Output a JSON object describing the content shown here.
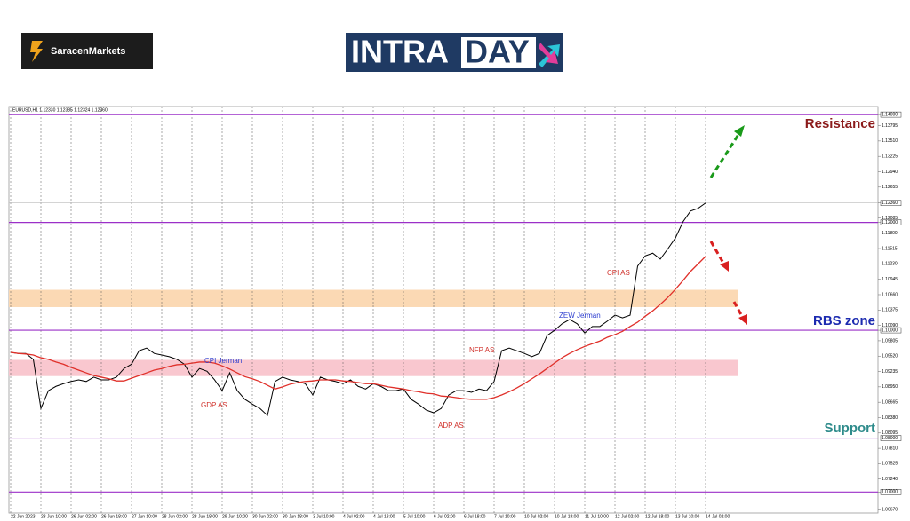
{
  "header": {
    "broker": "SaracenMarkets",
    "banner_left": "INTRA",
    "banner_right": "DAY"
  },
  "chart_data": {
    "type": "line",
    "symbol_info": "EURUSD,H1  1.12330 1.12385 1.12324 1.12360",
    "categories": [
      "22 Jun 2023",
      null,
      null,
      null,
      "23 Jun 10:00",
      null,
      null,
      null,
      "26 Jun 02:00",
      null,
      null,
      null,
      "26 Jun 18:00",
      null,
      null,
      null,
      "27 Jun 10:00",
      null,
      null,
      null,
      "28 Jun 02:00",
      null,
      null,
      null,
      "28 Jun 18:00",
      null,
      null,
      null,
      "29 Jun 10:00",
      null,
      null,
      null,
      "30 Jun 02:00",
      null,
      null,
      null,
      "30 Jun 18:00",
      null,
      null,
      null,
      "3 Jul 10:00",
      null,
      null,
      null,
      "4 Jul 02:00",
      null,
      null,
      null,
      "4 Jul 18:00",
      null,
      null,
      null,
      "5 Jul 10:00",
      null,
      null,
      null,
      "6 Jul 02:00",
      null,
      null,
      null,
      "6 Jul 18:00",
      null,
      null,
      null,
      "7 Jul 10:00",
      null,
      null,
      null,
      "10 Jul 02:00",
      null,
      null,
      null,
      "10 Jul 18:00",
      null,
      null,
      null,
      "11 Jul 10:00",
      null,
      null,
      null,
      "12 Jul 02:00",
      null,
      null,
      null,
      "12 Jul 18:00",
      null,
      null,
      null,
      "13 Jul 10:00",
      null,
      null,
      null,
      "14 Jul 02:00"
    ],
    "series": [
      {
        "color": "#000000",
        "values": [
          1.0959,
          1.0957,
          1.0957,
          1.0946,
          1.0855,
          1.0888,
          1.0896,
          1.0901,
          1.0905,
          1.0908,
          1.0905,
          1.0913,
          1.0908,
          1.0908,
          1.0913,
          1.0929,
          1.0937,
          1.0962,
          1.0967,
          1.0957,
          1.0954,
          1.0951,
          1.0946,
          1.0937,
          1.0913,
          1.0929,
          1.0924,
          1.0908,
          1.0888,
          1.0921,
          1.0888,
          1.0872,
          1.0863,
          1.0855,
          1.0842,
          1.0905,
          1.0913,
          1.0908,
          1.0905,
          1.0901,
          1.088,
          1.0913,
          1.0908,
          1.0905,
          1.0901,
          1.0908,
          1.0896,
          1.0891,
          1.0901,
          1.0896,
          1.0888,
          1.0888,
          1.0891,
          1.0872,
          1.0863,
          1.0852,
          1.0847,
          1.0855,
          1.088,
          1.0888,
          1.0888,
          1.0885,
          1.0891,
          1.0888,
          1.0905,
          1.0962,
          1.0967,
          1.0962,
          1.0957,
          1.0951,
          1.0957,
          1.099,
          1.1,
          1.1012,
          1.102,
          1.1012,
          1.0995,
          1.1007,
          1.1007,
          1.1017,
          1.1028,
          1.1023,
          1.1028,
          1.1119,
          1.1138,
          1.1143,
          1.1132,
          1.1151,
          1.1171,
          1.1201,
          1.1221,
          1.1226,
          1.1236
        ]
      },
      {
        "color": "#e0302a",
        "values": [
          1.0959,
          1.0957,
          1.0956,
          1.0954,
          1.0949,
          1.0946,
          1.0941,
          1.0937,
          1.0931,
          1.0926,
          1.0921,
          1.0916,
          1.0913,
          1.091,
          1.0906,
          1.0906,
          1.0911,
          1.0916,
          1.0921,
          1.0926,
          1.0929,
          1.0933,
          1.0936,
          1.0937,
          1.0939,
          1.0941,
          1.0941,
          1.0939,
          1.0934,
          1.0928,
          1.0921,
          1.0914,
          1.091,
          1.0905,
          1.0898,
          1.0891,
          1.0895,
          1.09,
          1.0903,
          1.0905,
          1.0906,
          1.0908,
          1.0908,
          1.0908,
          1.0906,
          1.0905,
          1.0903,
          1.0901,
          1.0901,
          1.0898,
          1.0895,
          1.0893,
          1.0891,
          1.0888,
          1.0886,
          1.0883,
          1.0882,
          1.0878,
          1.0877,
          1.0875,
          1.0873,
          1.0872,
          1.0872,
          1.0872,
          1.0875,
          1.088,
          1.0886,
          1.0893,
          1.0901,
          1.091,
          1.0919,
          1.0929,
          1.0939,
          1.0949,
          1.0957,
          1.0964,
          1.097,
          1.0975,
          1.098,
          1.0987,
          1.0992,
          1.0998,
          1.1007,
          1.1015,
          1.1026,
          1.1036,
          1.1048,
          1.1061,
          1.1076,
          1.1092,
          1.1109,
          1.1123,
          1.1137
        ]
      }
    ],
    "ylim": [
      1.0661,
      1.1415
    ],
    "yticks": [
      {
        "value": 1.14,
        "label": "1.14000",
        "boxed": true
      },
      {
        "value": 1.13795,
        "label": "1.13795"
      },
      {
        "value": 1.1351,
        "label": "1.13510"
      },
      {
        "value": 1.13225,
        "label": "1.13225"
      },
      {
        "value": 1.1294,
        "label": "1.12940"
      },
      {
        "value": 1.12655,
        "label": "1.12655"
      },
      {
        "value": 1.1236,
        "label": "1.12360",
        "boxed": true
      },
      {
        "value": 1.12085,
        "label": "1.12085"
      },
      {
        "value": 1.12,
        "label": "1.12000",
        "boxed": true
      },
      {
        "value": 1.118,
        "label": "1.11800"
      },
      {
        "value": 1.11515,
        "label": "1.11515"
      },
      {
        "value": 1.1123,
        "label": "1.11230"
      },
      {
        "value": 1.10945,
        "label": "1.10945"
      },
      {
        "value": 1.1066,
        "label": "1.10660"
      },
      {
        "value": 1.10375,
        "label": "1.10375"
      },
      {
        "value": 1.1009,
        "label": "1.10090"
      },
      {
        "value": 1.1,
        "label": "1.10000",
        "boxed": true
      },
      {
        "value": 1.09805,
        "label": "1.09805"
      },
      {
        "value": 1.0952,
        "label": "1.09520"
      },
      {
        "value": 1.09235,
        "label": "1.09235"
      },
      {
        "value": 1.0895,
        "label": "1.08950"
      },
      {
        "value": 1.08665,
        "label": "1.08665"
      },
      {
        "value": 1.0838,
        "label": "1.08380"
      },
      {
        "value": 1.08095,
        "label": "1.08095"
      },
      {
        "value": 1.08,
        "label": "1.08000",
        "boxed": true
      },
      {
        "value": 1.0781,
        "label": "1.07810"
      },
      {
        "value": 1.07525,
        "label": "1.07525"
      },
      {
        "value": 1.0724,
        "label": "1.07240"
      },
      {
        "value": 1.07,
        "label": "1.07000",
        "boxed": true
      },
      {
        "value": 1.0667,
        "label": "1.06670"
      }
    ],
    "levels": [
      1.14,
      1.12,
      1.1,
      1.08,
      1.07
    ],
    "level_color": "#9b30c8",
    "price_line": 1.1236,
    "zones": [
      {
        "from": 1.1043,
        "to": 1.1075,
        "color": "#fbd9b4"
      },
      {
        "from": 1.0915,
        "to": 1.0945,
        "color": "#f9c7cf"
      }
    ],
    "zone_labels": [
      {
        "text": "Resistance",
        "color": "#8b1a1a"
      },
      {
        "text": "RBS zone",
        "color": "#1c2bb0"
      },
      {
        "text": "Support",
        "color": "#2e8b8b"
      }
    ],
    "events": [
      {
        "text": "CPI Jerman",
        "color": "#2b3ccf"
      },
      {
        "text": "GDP AS",
        "color": "#d0302a"
      },
      {
        "text": "NFP AS",
        "color": "#d0302a"
      },
      {
        "text": "ADP AS",
        "color": "#d0302a"
      },
      {
        "text": "ZEW Jerman",
        "color": "#2b3ccf"
      },
      {
        "text": "CPI AS",
        "color": "#d0302a"
      }
    ]
  }
}
